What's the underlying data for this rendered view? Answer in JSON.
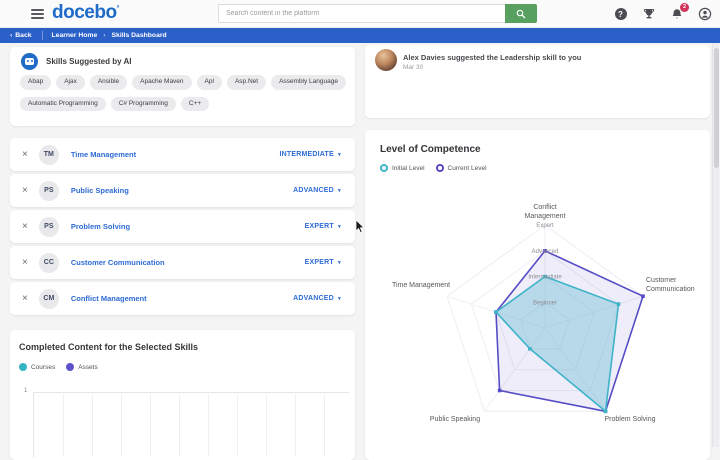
{
  "header": {
    "logo_text": "docebo",
    "logo_mark": "°",
    "search_placeholder": "Search content in the platform",
    "notification_badge": "2"
  },
  "breadcrumb": {
    "back_label": "Back",
    "items": [
      "Learner Home",
      "Skills Dashboard"
    ]
  },
  "suggested_skills": {
    "title": "Skills Suggested by AI",
    "tags": [
      "Abap",
      "Ajax",
      "Ansible",
      "Apache Maven",
      "Apl",
      "Asp.Net",
      "Assembly Language",
      "Automatic Programming",
      "C# Programming",
      "C++"
    ]
  },
  "skills_list": [
    {
      "initials": "TM",
      "name": "Time Management",
      "level": "INTERMEDIATE"
    },
    {
      "initials": "PS",
      "name": "Public Speaking",
      "level": "ADVANCED"
    },
    {
      "initials": "PS",
      "name": "Problem Solving",
      "level": "EXPERT"
    },
    {
      "initials": "CC",
      "name": "Customer Communication",
      "level": "EXPERT"
    },
    {
      "initials": "CM",
      "name": "Conflict Management",
      "level": "ADVANCED"
    }
  ],
  "notification": {
    "message": "Alex Davies suggested the Leadership skill to you",
    "date": "Mar 30"
  },
  "competence_panel": {
    "title": "Level of Competence",
    "legend": [
      {
        "label": "Initial Level",
        "color": "#3fb3c8"
      },
      {
        "label": "Current Level",
        "color": "#564cc5"
      }
    ]
  },
  "completed_panel": {
    "title": "Completed Content for the Selected Skills",
    "legend": [
      {
        "label": "Courses",
        "color": "#35b5c4"
      },
      {
        "label": "Assets",
        "color": "#5b51c9"
      }
    ],
    "y_tick": "1"
  },
  "chart_data": [
    {
      "type": "radar",
      "title": "Level of Competence",
      "categories": [
        "Conflict Management",
        "Customer Communication",
        "Problem Solving",
        "Public Speaking",
        "Time Management"
      ],
      "level_scale": [
        "Beginner",
        "Intermediate",
        "Advanced",
        "Expert"
      ],
      "axis_range": [
        0,
        4
      ],
      "legend_position": "top-left",
      "series": [
        {
          "name": "Initial Level",
          "color": "#3fb3c8",
          "values": [
            2,
            3,
            4,
            1,
            2
          ],
          "values_named": [
            "Intermediate",
            "Advanced",
            "Expert",
            "Beginner",
            "Intermediate"
          ]
        },
        {
          "name": "Current Level",
          "color": "#564cc5",
          "values": [
            3,
            4,
            4,
            3,
            2
          ],
          "values_named": [
            "Advanced",
            "Expert",
            "Expert",
            "Advanced",
            "Intermediate"
          ]
        }
      ]
    },
    {
      "type": "bar",
      "title": "Completed Content for the Selected Skills",
      "series": [
        {
          "name": "Courses",
          "color": "#35b5c4",
          "values": []
        },
        {
          "name": "Assets",
          "color": "#5b51c9",
          "values": []
        }
      ],
      "y_ticks": [
        "1"
      ],
      "note_visible_state": "plot area empty / cut off at bottom of viewport"
    }
  ],
  "colors": {
    "breadcrumb_bar": "#2b60c8",
    "brand_blue": "#1e6bc8",
    "link_blue": "#2e6bd6",
    "search_button_green": "#58a05f",
    "page_background": "#f4f4f5",
    "badge_red": "#d1335b",
    "radar_initial": "#3fb3c8",
    "radar_current": "#564cc5"
  }
}
